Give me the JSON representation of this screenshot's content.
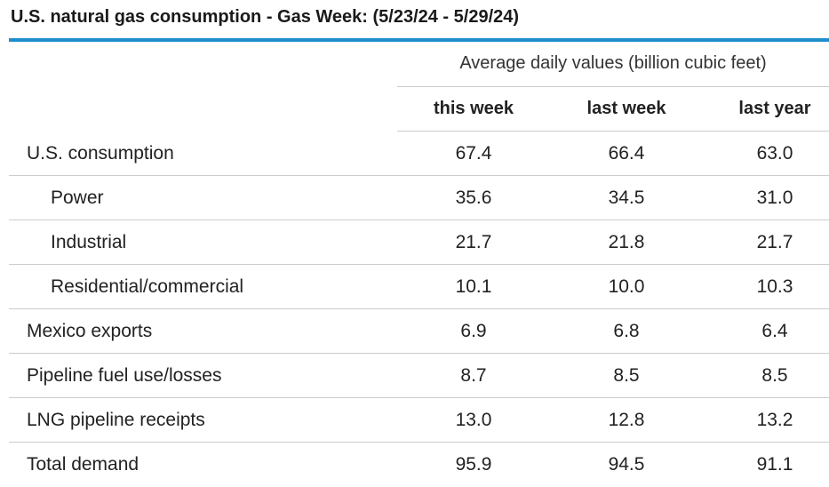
{
  "chart_data": {
    "type": "table",
    "title": "U.S. natural gas consumption - Gas Week: (5/23/24 - 5/29/24)",
    "group_header": "Average daily values (billion cubic feet)",
    "columns": [
      "this week",
      "last week",
      "last year"
    ],
    "rows": [
      {
        "label": "U.S. consumption",
        "indent": false,
        "values": [
          "67.4",
          "66.4",
          "63.0"
        ]
      },
      {
        "label": "Power",
        "indent": true,
        "values": [
          "35.6",
          "34.5",
          "31.0"
        ]
      },
      {
        "label": "Industrial",
        "indent": true,
        "values": [
          "21.7",
          "21.8",
          "21.7"
        ]
      },
      {
        "label": "Residential/commercial",
        "indent": true,
        "values": [
          "10.1",
          "10.0",
          "10.3"
        ]
      },
      {
        "label": "Mexico exports",
        "indent": false,
        "values": [
          "6.9",
          "6.8",
          "6.4"
        ]
      },
      {
        "label": "Pipeline fuel use/losses",
        "indent": false,
        "values": [
          "8.7",
          "8.5",
          "8.5"
        ]
      },
      {
        "label": "LNG pipeline receipts",
        "indent": false,
        "values": [
          "13.0",
          "12.8",
          "13.2"
        ]
      },
      {
        "label": "Total demand",
        "indent": false,
        "values": [
          "95.9",
          "94.5",
          "91.1"
        ]
      }
    ]
  },
  "colors": {
    "accent_rule": "#1e8ec9",
    "row_rule": "#cccccc",
    "text": "#222222"
  }
}
